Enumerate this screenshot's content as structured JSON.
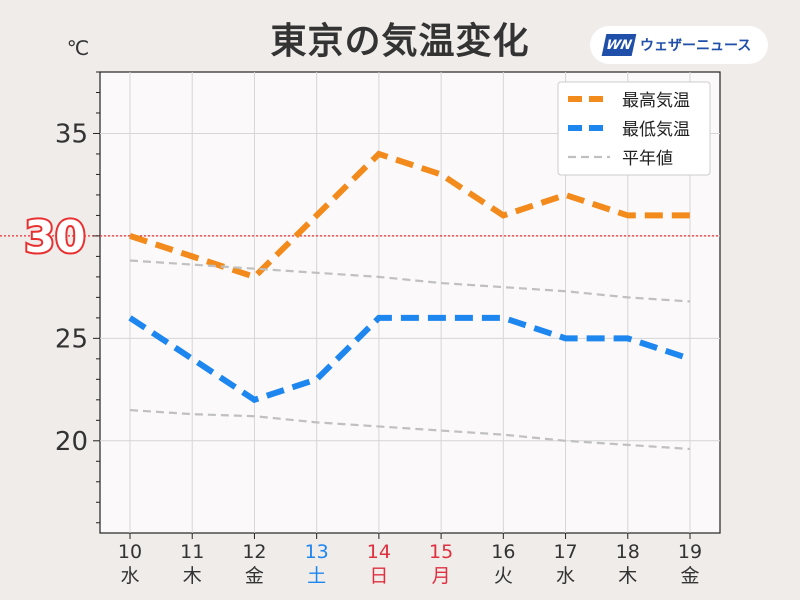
{
  "header": {
    "title": "東京の気温変化",
    "logo_mark": "WN",
    "logo_text": "ウェザーニュース",
    "unit": "℃"
  },
  "colors": {
    "high": "#f28a1c",
    "low": "#1e86ef",
    "normal": "#c0c0c0",
    "threshold": "#e83030",
    "saturday": "#1e86ef",
    "holiday": "#e03040",
    "weekday": "#333333"
  },
  "chart_data": {
    "type": "line",
    "title": "東京の気温変化",
    "ylabel": "℃",
    "ylim": [
      15.5,
      38
    ],
    "yticks": [
      20,
      25,
      35
    ],
    "highlight": {
      "value": 30,
      "label": "30"
    },
    "x": [
      {
        "date": "10",
        "weekday": "水",
        "kind": "weekday"
      },
      {
        "date": "11",
        "weekday": "木",
        "kind": "weekday"
      },
      {
        "date": "12",
        "weekday": "金",
        "kind": "weekday"
      },
      {
        "date": "13",
        "weekday": "土",
        "kind": "saturday"
      },
      {
        "date": "14",
        "weekday": "日",
        "kind": "holiday"
      },
      {
        "date": "15",
        "weekday": "月",
        "kind": "holiday"
      },
      {
        "date": "16",
        "weekday": "火",
        "kind": "weekday"
      },
      {
        "date": "17",
        "weekday": "水",
        "kind": "weekday"
      },
      {
        "date": "18",
        "weekday": "木",
        "kind": "weekday"
      },
      {
        "date": "19",
        "weekday": "金",
        "kind": "weekday"
      }
    ],
    "series": [
      {
        "name": "最高気温",
        "key": "high",
        "values": [
          30,
          29,
          28,
          31,
          34,
          33,
          31,
          32,
          31,
          31
        ]
      },
      {
        "name": "最低気温",
        "key": "low",
        "values": [
          26,
          24,
          22,
          23,
          26,
          26,
          26,
          25,
          25,
          24
        ]
      },
      {
        "name": "平年値",
        "key": "normal_high",
        "values": [
          28.8,
          28.6,
          28.4,
          28.2,
          28.0,
          27.7,
          27.5,
          27.3,
          27.0,
          26.8
        ]
      },
      {
        "name": "",
        "key": "normal_low",
        "values": [
          21.5,
          21.3,
          21.2,
          20.9,
          20.7,
          20.5,
          20.3,
          20.0,
          19.8,
          19.6
        ]
      }
    ],
    "legend": {
      "position": "top-right",
      "entries": [
        {
          "label": "最高気温",
          "key": "high"
        },
        {
          "label": "最低気温",
          "key": "low"
        },
        {
          "label": "平年値",
          "key": "normal"
        }
      ]
    },
    "grid": true
  }
}
